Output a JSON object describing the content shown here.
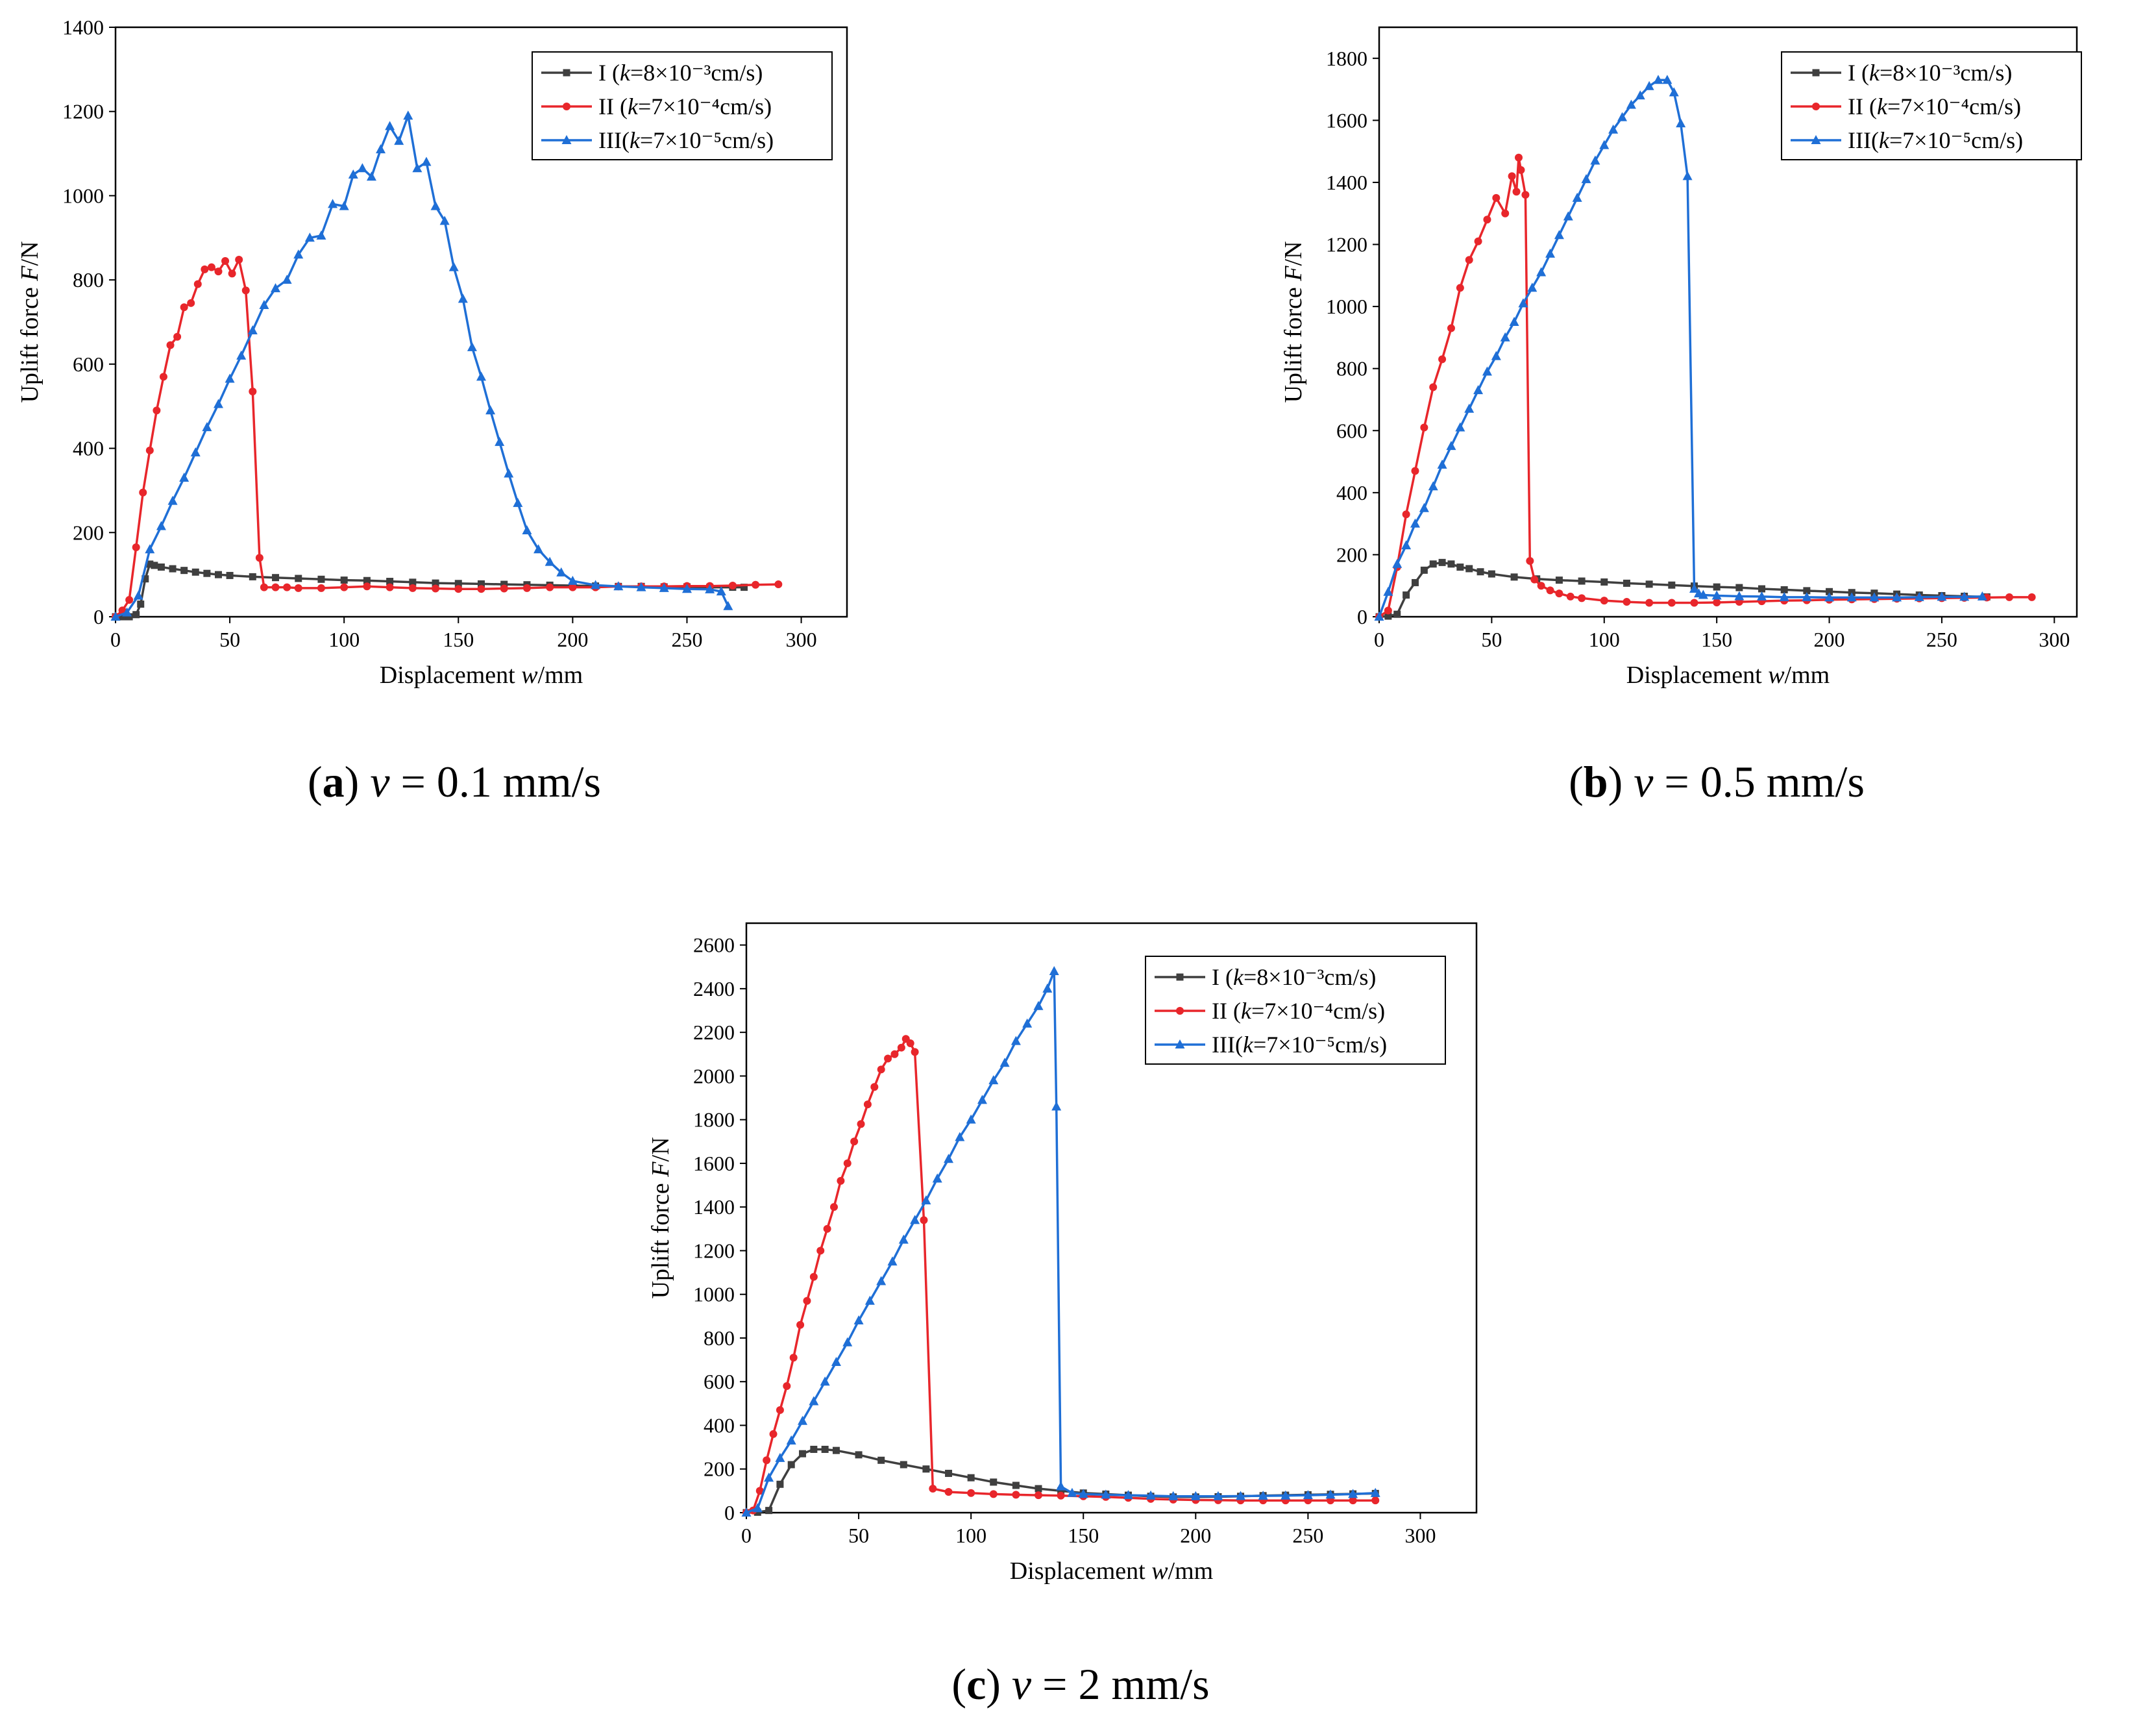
{
  "colors": {
    "I": "#3f3f3f",
    "II": "#e8262b",
    "III": "#1f6fd6",
    "axis": "#000000"
  },
  "chart_data": [
    {
      "type": "line",
      "panel": "a",
      "caption": {
        "letter": "a",
        "variable": "v",
        "rest": " = 0.1 mm/s"
      },
      "xlabel": {
        "text": "Displacement ",
        "italic": "w",
        "unit": "/mm"
      },
      "ylabel": {
        "text": "Uplift force ",
        "italic": "F",
        "unit": "/N"
      },
      "xlim": [
        0,
        320
      ],
      "ylim": [
        0,
        1400
      ],
      "xticks": [
        0,
        50,
        100,
        150,
        200,
        250,
        300
      ],
      "yticks": [
        0,
        200,
        400,
        600,
        800,
        1000,
        1200,
        1400
      ],
      "legend_position": "top-right",
      "series": [
        {
          "name": "I",
          "label": "I (k=8×10⁻³cm/s)",
          "legend": {
            "pre": "I (",
            "k": "k",
            "post": "=8×10⁻³cm/s)"
          },
          "marker": "square",
          "color_key": "I",
          "x": [
            0,
            3,
            6,
            9,
            11,
            13,
            15,
            17,
            20,
            25,
            30,
            35,
            40,
            45,
            50,
            60,
            70,
            80,
            90,
            100,
            110,
            120,
            130,
            140,
            150,
            160,
            170,
            180,
            190,
            200,
            210,
            220,
            230,
            240,
            250,
            260,
            270,
            275
          ],
          "y": [
            0,
            0,
            0,
            5,
            30,
            90,
            125,
            122,
            118,
            114,
            110,
            106,
            103,
            100,
            98,
            95,
            93,
            91,
            89,
            87,
            86,
            84,
            82,
            80,
            79,
            78,
            77,
            76,
            75,
            74,
            73,
            72,
            72,
            71,
            71,
            70,
            70,
            70
          ]
        },
        {
          "name": "II",
          "label": "II (k=7×10⁻⁴cm/s)",
          "legend": {
            "pre": "II (",
            "k": "k",
            "post": "=7×10⁻⁴cm/s)"
          },
          "marker": "circle",
          "color_key": "II",
          "x": [
            0,
            3,
            6,
            9,
            12,
            15,
            18,
            21,
            24,
            27,
            30,
            33,
            36,
            39,
            42,
            45,
            48,
            51,
            54,
            57,
            60,
            63,
            65,
            70,
            75,
            80,
            90,
            100,
            110,
            120,
            130,
            140,
            150,
            160,
            170,
            180,
            190,
            200,
            210,
            220,
            230,
            240,
            250,
            260,
            270,
            280,
            290
          ],
          "y": [
            0,
            15,
            40,
            165,
            295,
            395,
            490,
            570,
            645,
            665,
            735,
            745,
            790,
            825,
            830,
            820,
            845,
            815,
            848,
            775,
            535,
            140,
            70,
            70,
            70,
            68,
            68,
            70,
            72,
            70,
            68,
            67,
            66,
            66,
            67,
            68,
            70,
            70,
            70,
            72,
            72,
            72,
            73,
            73,
            74,
            76,
            77
          ]
        },
        {
          "name": "III",
          "label": "III(k=7×10⁻⁵cm/s)",
          "legend": {
            "pre": "III(",
            "k": "k",
            "post": "=7×10⁻⁵cm/s)"
          },
          "marker": "triangle",
          "color_key": "III",
          "x": [
            0,
            5,
            10,
            15,
            20,
            25,
            30,
            35,
            40,
            45,
            50,
            55,
            60,
            65,
            70,
            75,
            80,
            85,
            90,
            95,
            100,
            104,
            108,
            112,
            116,
            120,
            124,
            128,
            132,
            136,
            140,
            144,
            148,
            152,
            156,
            160,
            164,
            168,
            172,
            176,
            180,
            185,
            190,
            195,
            200,
            210,
            220,
            230,
            240,
            250,
            260,
            265,
            268
          ],
          "y": [
            0,
            10,
            50,
            160,
            215,
            275,
            330,
            390,
            450,
            505,
            565,
            620,
            680,
            740,
            780,
            800,
            860,
            900,
            905,
            980,
            975,
            1050,
            1065,
            1045,
            1110,
            1165,
            1130,
            1190,
            1065,
            1080,
            975,
            940,
            830,
            755,
            640,
            570,
            490,
            415,
            340,
            270,
            205,
            160,
            130,
            105,
            85,
            75,
            72,
            70,
            68,
            66,
            65,
            60,
            25
          ]
        }
      ]
    },
    {
      "type": "line",
      "panel": "b",
      "caption": {
        "letter": "b",
        "variable": "v",
        "rest": " = 0.5 mm/s"
      },
      "xlabel": {
        "text": "Displacement ",
        "italic": "w",
        "unit": "/mm"
      },
      "ylabel": {
        "text": "Uplift force ",
        "italic": "F",
        "unit": "/N"
      },
      "xlim": [
        0,
        310
      ],
      "ylim": [
        0,
        1900
      ],
      "xticks": [
        0,
        50,
        100,
        150,
        200,
        250,
        300
      ],
      "yticks": [
        0,
        200,
        400,
        600,
        800,
        1000,
        1200,
        1400,
        1600,
        1800
      ],
      "legend_position": "top-right",
      "series": [
        {
          "name": "I",
          "label": "I (k=8×10⁻³cm/s)",
          "legend": {
            "pre": "I (",
            "k": "k",
            "post": "=8×10⁻³cm/s)"
          },
          "marker": "square",
          "color_key": "I",
          "x": [
            0,
            4,
            8,
            12,
            16,
            20,
            24,
            28,
            32,
            36,
            40,
            45,
            50,
            60,
            70,
            80,
            90,
            100,
            110,
            120,
            130,
            140,
            150,
            160,
            170,
            180,
            190,
            200,
            210,
            220,
            230,
            240,
            250,
            260,
            270
          ],
          "y": [
            0,
            2,
            8,
            70,
            110,
            150,
            170,
            175,
            170,
            160,
            155,
            145,
            138,
            128,
            122,
            118,
            115,
            112,
            108,
            105,
            102,
            99,
            96,
            94,
            90,
            87,
            84,
            81,
            78,
            76,
            73,
            70,
            68,
            66,
            64
          ]
        },
        {
          "name": "II",
          "label": "II (k=7×10⁻⁴cm/s)",
          "legend": {
            "pre": "II (",
            "k": "k",
            "post": "=7×10⁻⁴cm/s)"
          },
          "marker": "circle",
          "color_key": "II",
          "x": [
            0,
            4,
            8,
            12,
            16,
            20,
            24,
            28,
            32,
            36,
            40,
            44,
            48,
            52,
            56,
            59,
            61,
            62,
            63,
            65,
            67,
            69,
            72,
            76,
            80,
            85,
            90,
            100,
            110,
            120,
            130,
            140,
            150,
            160,
            170,
            180,
            190,
            200,
            210,
            220,
            230,
            240,
            250,
            260,
            270,
            280,
            290
          ],
          "y": [
            0,
            20,
            160,
            330,
            470,
            610,
            740,
            830,
            930,
            1060,
            1150,
            1210,
            1280,
            1350,
            1300,
            1420,
            1370,
            1480,
            1440,
            1360,
            180,
            120,
            100,
            85,
            75,
            65,
            60,
            52,
            48,
            45,
            45,
            45,
            46,
            48,
            50,
            52,
            53,
            55,
            56,
            57,
            58,
            59,
            60,
            61,
            62,
            63,
            63
          ]
        },
        {
          "name": "III",
          "label": "III(k=7×10⁻⁵cm/s)",
          "legend": {
            "pre": "III(",
            "k": "k",
            "post": "=7×10⁻⁵cm/s)"
          },
          "marker": "triangle",
          "color_key": "III",
          "x": [
            0,
            4,
            8,
            12,
            16,
            20,
            24,
            28,
            32,
            36,
            40,
            44,
            48,
            52,
            56,
            60,
            64,
            68,
            72,
            76,
            80,
            84,
            88,
            92,
            96,
            100,
            104,
            108,
            112,
            116,
            120,
            124,
            128,
            131,
            134,
            137,
            140,
            142,
            144,
            150,
            160,
            170,
            180,
            190,
            200,
            210,
            220,
            230,
            240,
            250,
            260,
            268
          ],
          "y": [
            0,
            80,
            170,
            230,
            300,
            350,
            420,
            490,
            550,
            610,
            670,
            730,
            790,
            840,
            900,
            950,
            1010,
            1060,
            1110,
            1170,
            1230,
            1290,
            1350,
            1410,
            1470,
            1520,
            1570,
            1610,
            1650,
            1680,
            1710,
            1730,
            1730,
            1690,
            1590,
            1420,
            90,
            75,
            70,
            68,
            66,
            65,
            63,
            63,
            62,
            62,
            62,
            62,
            63,
            64,
            64,
            65
          ]
        }
      ]
    },
    {
      "type": "line",
      "panel": "c",
      "caption": {
        "letter": "c",
        "variable": "v",
        "rest": " = 2 mm/s"
      },
      "xlabel": {
        "text": "Displacement ",
        "italic": "w",
        "unit": "/mm"
      },
      "ylabel": {
        "text": "Uplift force ",
        "italic": "F",
        "unit": "/N"
      },
      "xlim": [
        0,
        325
      ],
      "ylim": [
        0,
        2700
      ],
      "xticks": [
        0,
        50,
        100,
        150,
        200,
        250,
        300
      ],
      "yticks": [
        0,
        200,
        400,
        600,
        800,
        1000,
        1200,
        1400,
        1600,
        1800,
        2000,
        2200,
        2400,
        2600
      ],
      "legend_position": "top-right",
      "series": [
        {
          "name": "I",
          "label": "I (k=8×10⁻³cm/s)",
          "legend": {
            "pre": "I (",
            "k": "k",
            "post": "=8×10⁻³cm/s)"
          },
          "marker": "square",
          "color_key": "I",
          "x": [
            0,
            5,
            10,
            15,
            20,
            25,
            30,
            35,
            40,
            50,
            60,
            70,
            80,
            90,
            100,
            110,
            120,
            130,
            140,
            150,
            160,
            170,
            180,
            190,
            200,
            210,
            220,
            230,
            240,
            250,
            260,
            270,
            280
          ],
          "y": [
            0,
            2,
            10,
            130,
            220,
            270,
            290,
            290,
            285,
            265,
            240,
            220,
            200,
            180,
            160,
            140,
            125,
            110,
            100,
            90,
            85,
            80,
            75,
            72,
            72,
            73,
            75,
            78,
            80,
            82,
            84,
            86,
            88
          ]
        },
        {
          "name": "II",
          "label": "II (k=7×10⁻⁴cm/s)",
          "legend": {
            "pre": "II (",
            "k": "k",
            "post": "=7×10⁻⁴cm/s)"
          },
          "marker": "circle",
          "color_key": "II",
          "x": [
            0,
            3,
            6,
            9,
            12,
            15,
            18,
            21,
            24,
            27,
            30,
            33,
            36,
            39,
            42,
            45,
            48,
            51,
            54,
            57,
            60,
            63,
            66,
            69,
            71,
            73,
            75,
            79,
            83,
            90,
            100,
            110,
            120,
            130,
            140,
            150,
            160,
            170,
            180,
            190,
            200,
            210,
            220,
            230,
            240,
            250,
            260,
            270,
            280
          ],
          "y": [
            0,
            10,
            100,
            240,
            360,
            470,
            580,
            710,
            860,
            970,
            1080,
            1200,
            1300,
            1400,
            1520,
            1600,
            1700,
            1780,
            1870,
            1950,
            2030,
            2080,
            2100,
            2130,
            2170,
            2150,
            2110,
            1340,
            110,
            95,
            90,
            85,
            82,
            80,
            78,
            75,
            72,
            68,
            63,
            60,
            58,
            57,
            56,
            56,
            56,
            56,
            56,
            56,
            56
          ]
        },
        {
          "name": "III",
          "label": "III(k=7×10⁻⁵cm/s)",
          "legend": {
            "pre": "III(",
            "k": "k",
            "post": "=7×10⁻⁵cm/s)"
          },
          "marker": "triangle",
          "color_key": "III",
          "x": [
            0,
            5,
            10,
            15,
            20,
            25,
            30,
            35,
            40,
            45,
            50,
            55,
            60,
            65,
            70,
            75,
            80,
            85,
            90,
            95,
            100,
            105,
            110,
            115,
            120,
            125,
            130,
            134,
            137,
            138,
            140,
            145,
            150,
            160,
            170,
            180,
            190,
            200,
            210,
            220,
            230,
            240,
            250,
            260,
            270,
            280
          ],
          "y": [
            0,
            20,
            160,
            250,
            330,
            420,
            510,
            600,
            690,
            780,
            880,
            970,
            1060,
            1150,
            1250,
            1340,
            1430,
            1530,
            1620,
            1720,
            1800,
            1890,
            1980,
            2060,
            2160,
            2240,
            2320,
            2400,
            2480,
            1860,
            120,
            90,
            85,
            82,
            80,
            78,
            75,
            75,
            75,
            76,
            77,
            78,
            80,
            82,
            85,
            90
          ]
        }
      ]
    }
  ]
}
